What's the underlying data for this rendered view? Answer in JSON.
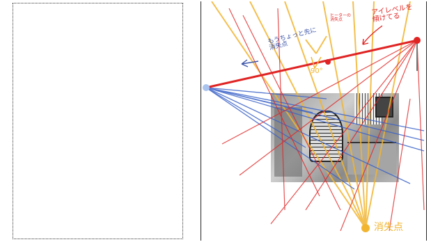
{
  "annotations": {
    "eye_level": "アイレベルを\n傾けてる",
    "vp_outside": "もうちょっと先に\n消失点",
    "heater": "ヒーターの\n消失点",
    "angle": "90°",
    "vp_bottom": "消失点"
  },
  "colors": {
    "red": "#e02424",
    "blue": "#3a62c8",
    "orange": "#f2b530",
    "blue_dot": "#a9c4ef",
    "ink": "#3b55a8"
  }
}
